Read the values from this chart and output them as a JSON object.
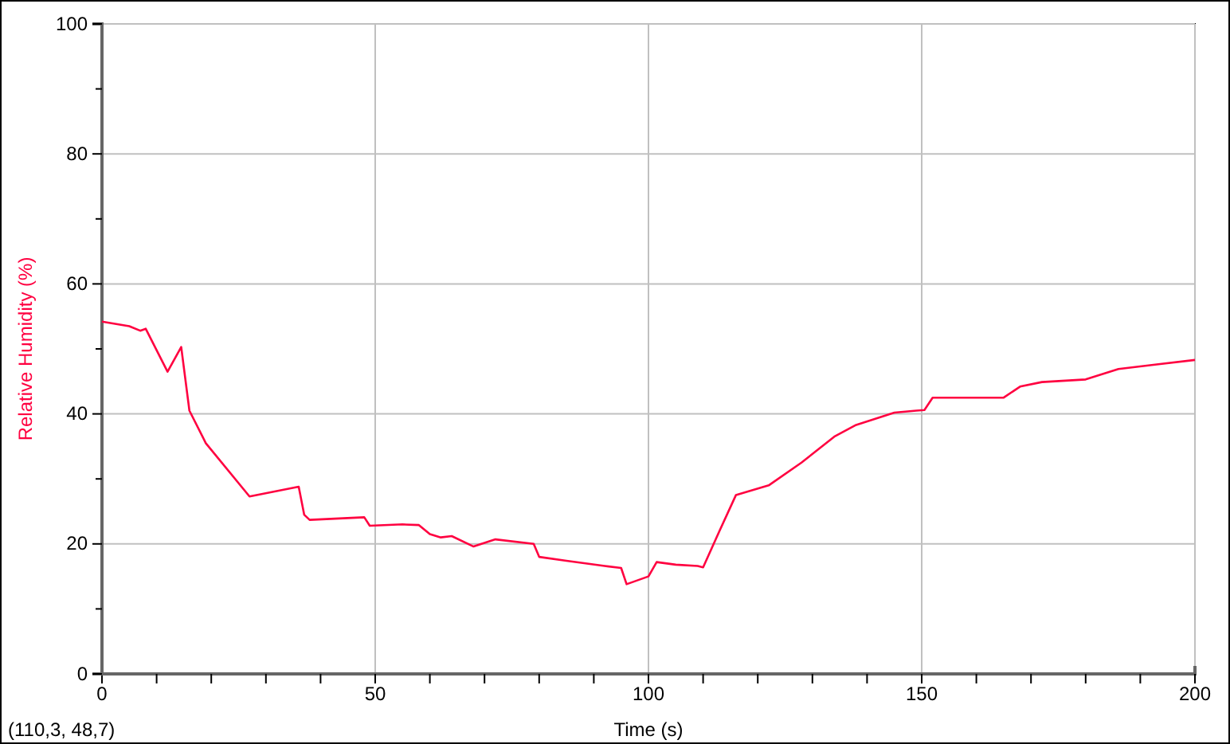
{
  "chart_data": {
    "type": "line",
    "xlabel": "Time (s)",
    "ylabel": "Relative Humidity (%)",
    "xlim": [
      0,
      200
    ],
    "ylim": [
      0,
      100
    ],
    "xticks": [
      0,
      {
        "value": 10,
        "label": null
      },
      {
        "value": 20,
        "label": null
      },
      {
        "value": 30,
        "label": null
      },
      {
        "value": 40,
        "label": null
      },
      50,
      {
        "value": 60,
        "label": null
      },
      {
        "value": 70,
        "label": null
      },
      {
        "value": 80,
        "label": null
      },
      {
        "value": 90,
        "label": null
      },
      100,
      {
        "value": 110,
        "label": null
      },
      {
        "value": 120,
        "label": null
      },
      {
        "value": 130,
        "label": null
      },
      {
        "value": 140,
        "label": null
      },
      150,
      {
        "value": 160,
        "label": null
      },
      {
        "value": 170,
        "label": null
      },
      {
        "value": 180,
        "label": null
      },
      {
        "value": 190,
        "label": null
      },
      200
    ],
    "yticks": [
      0,
      {
        "value": 10,
        "label": null
      },
      20,
      {
        "value": 30,
        "label": null
      },
      40,
      {
        "value": 50,
        "label": null
      },
      60,
      {
        "value": 70,
        "label": null
      },
      80,
      {
        "value": 90,
        "label": null
      },
      100
    ],
    "grid": true,
    "marker": "none",
    "line_style": "solid",
    "annotations": [
      "(110,3, 48,7)"
    ],
    "series": [
      {
        "color": "#ff0040",
        "x": [
          0,
          5,
          7,
          8,
          12,
          14.5,
          16,
          19,
          27,
          36,
          37,
          38,
          48,
          49,
          55,
          58,
          60,
          62,
          64,
          68,
          72,
          79,
          80,
          85,
          92,
          95,
          96,
          100,
          101.5,
          105,
          109,
          110,
          113,
          116,
          122,
          128,
          134,
          138,
          145,
          149,
          150.5,
          152,
          165,
          168,
          172,
          180,
          186,
          193,
          200
        ],
        "values": [
          54.2,
          53.5,
          52.8,
          53.1,
          46.5,
          50.3,
          40.5,
          35.5,
          27.3,
          28.8,
          24.5,
          23.7,
          24.1,
          22.8,
          23,
          22.9,
          21.5,
          21,
          21.2,
          19.6,
          20.7,
          20,
          18,
          17.4,
          16.6,
          16.3,
          13.8,
          15,
          17.2,
          16.8,
          16.6,
          16.4,
          22,
          27.5,
          29,
          32.5,
          36.5,
          38.3,
          40.2,
          40.5,
          40.6,
          42.5,
          42.5,
          44.2,
          44.9,
          45.3,
          46.9,
          47.6,
          48.3
        ]
      }
    ]
  }
}
